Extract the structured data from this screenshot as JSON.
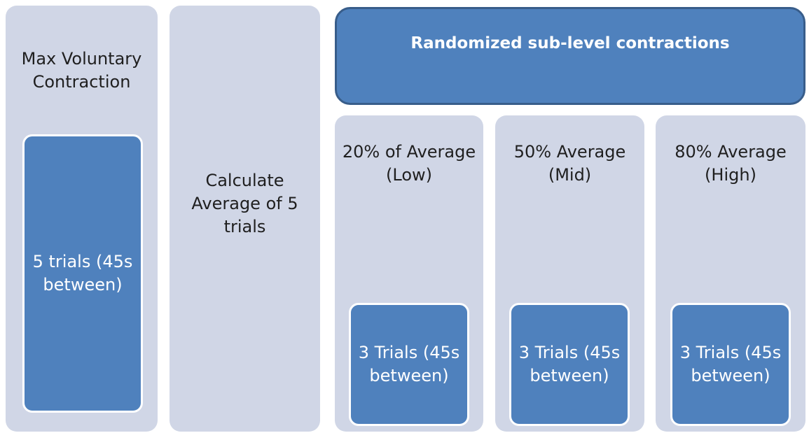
{
  "banner": "Randomized sub-level contractions",
  "columns": [
    {
      "label": "Max Voluntary Contraction",
      "inner": "5 trials (45s between)"
    },
    {
      "label": "Calculate Average of 5 trials"
    },
    {
      "label": "20% of Average (Low)",
      "inner": "3 Trials (45s between)"
    },
    {
      "label": "50% Average (Mid)",
      "inner": "3 Trials (45s between)"
    },
    {
      "label": "80% Average (High)",
      "inner": "3 Trials (45s between)"
    }
  ]
}
